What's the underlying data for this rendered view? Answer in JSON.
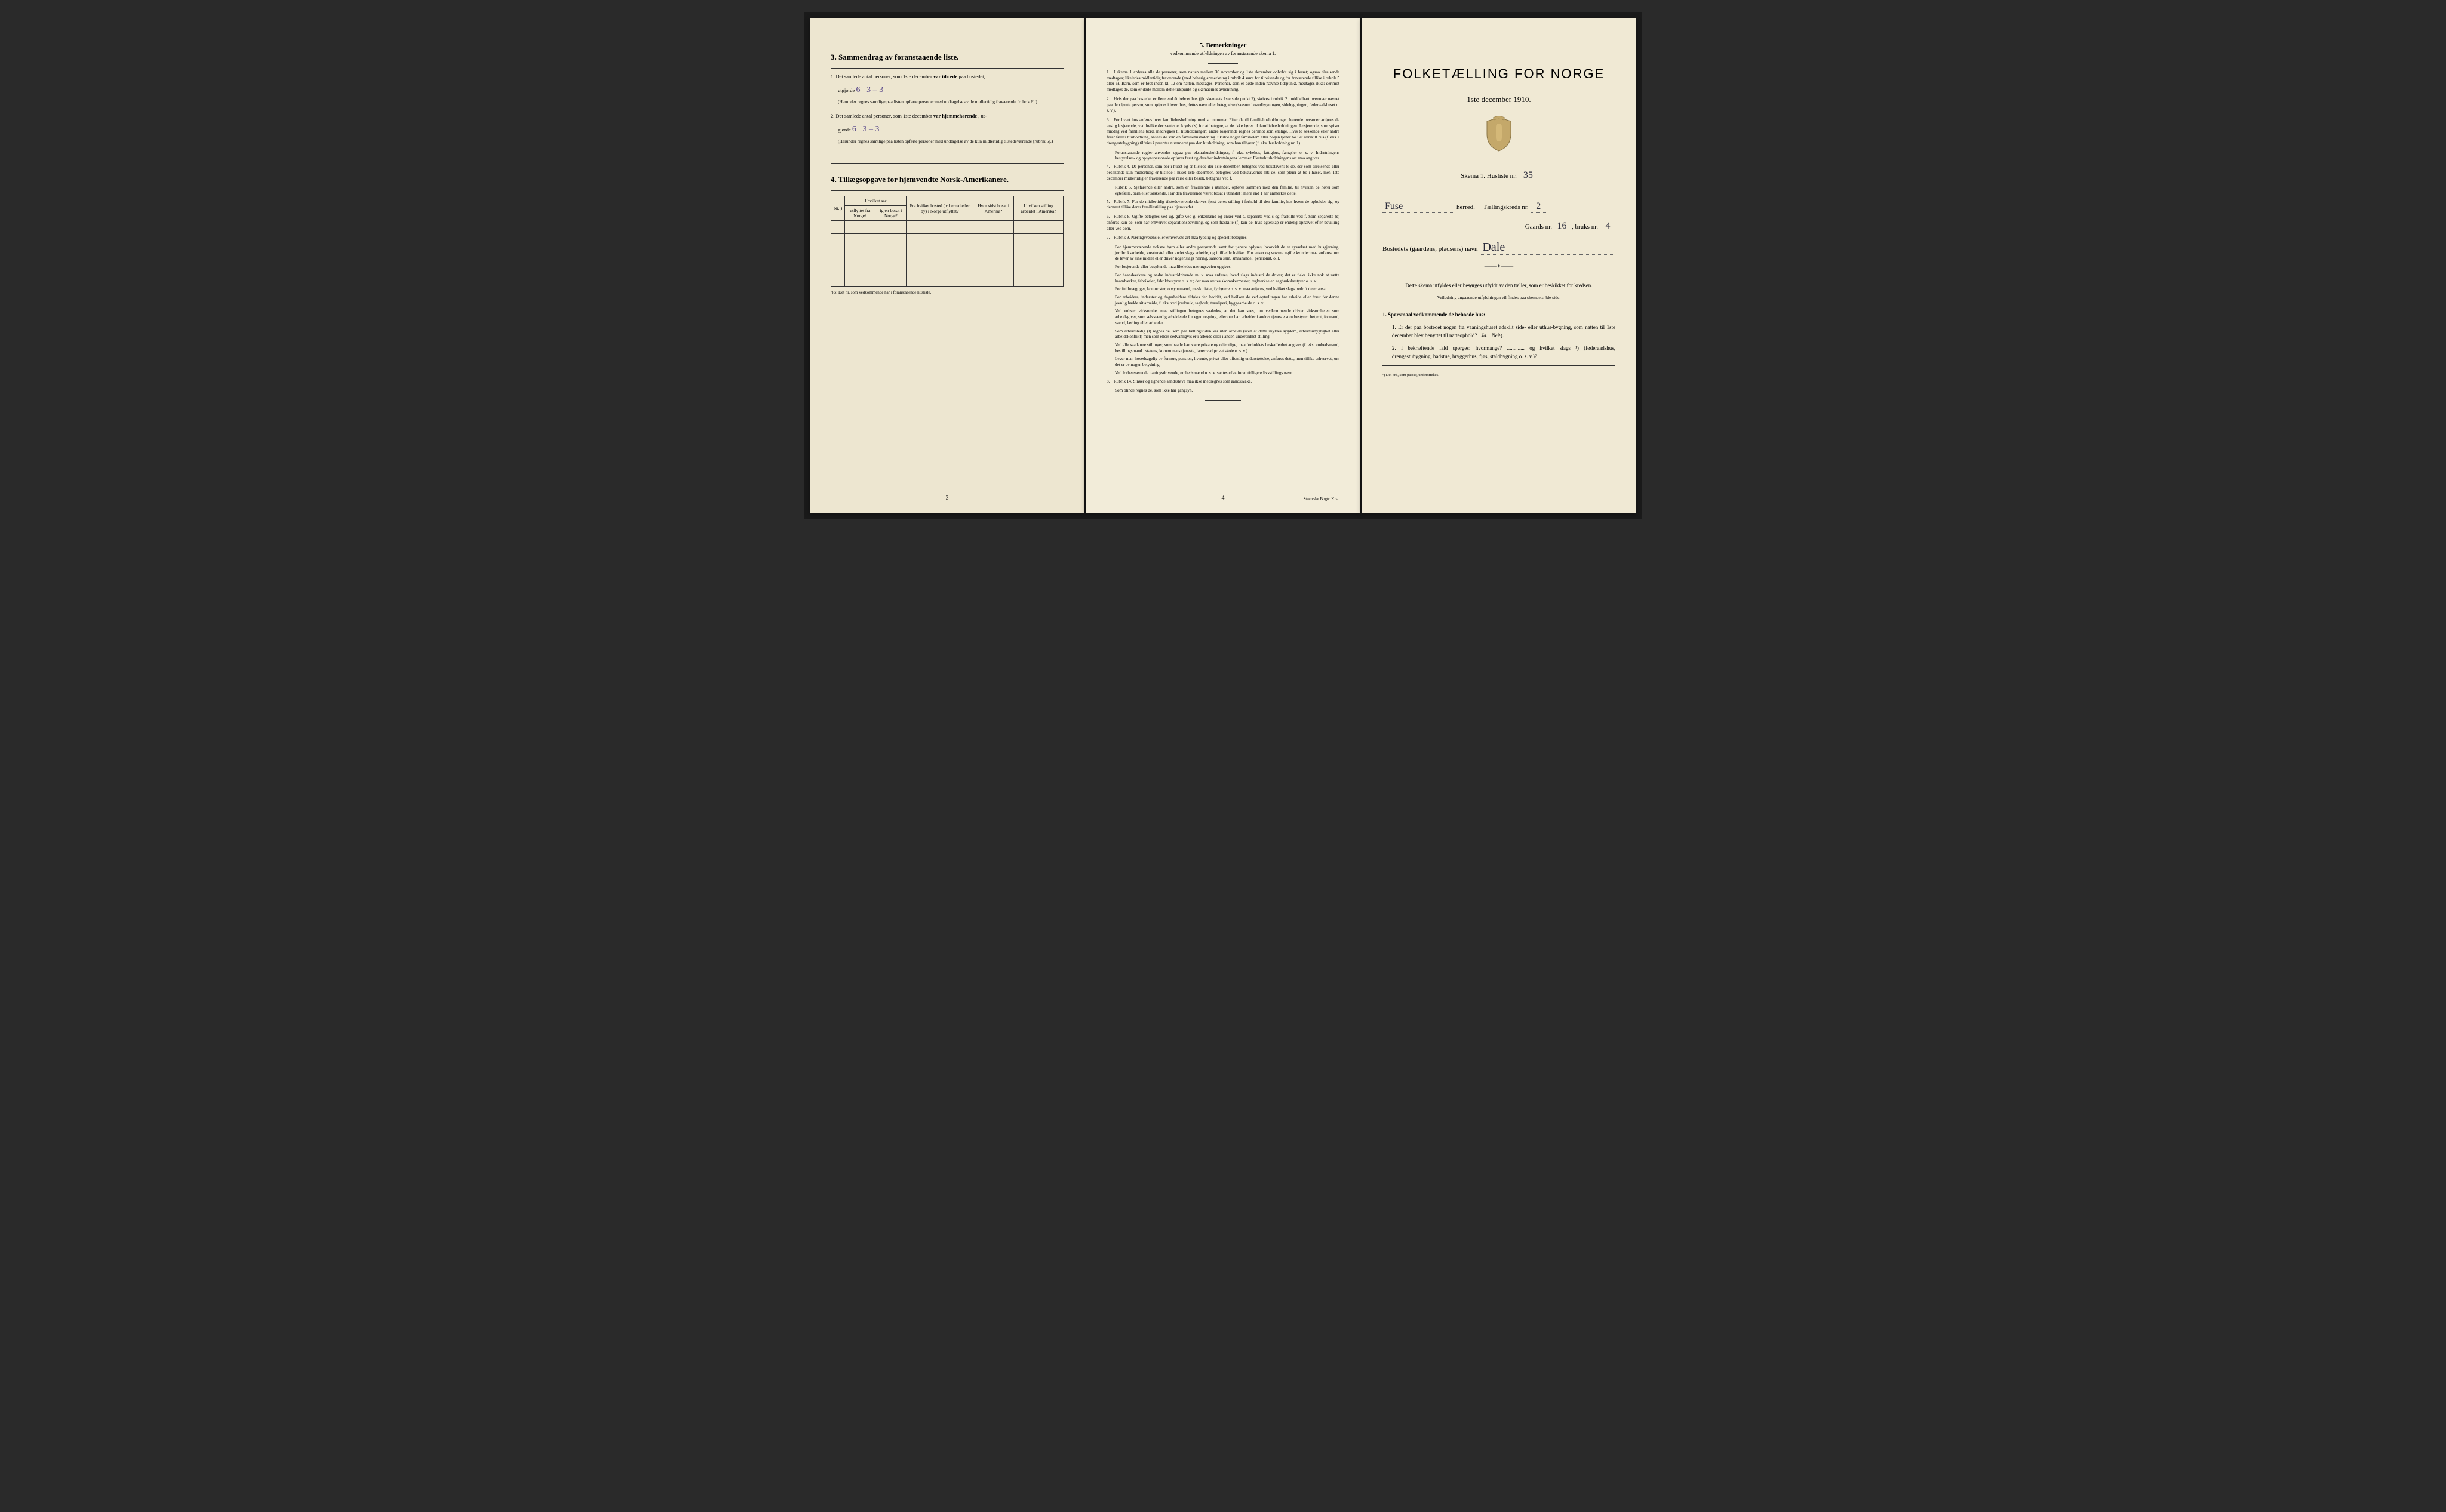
{
  "colors": {
    "paper_left": "#ede6d0",
    "paper_mid": "#f2ecd9",
    "paper_right": "#f0e9d4",
    "ink": "#1a1a1a",
    "pencil_purple": "#5a4a8a",
    "pen_dark": "#2a2a3a"
  },
  "page3": {
    "heading": "3.   Sammendrag av foranstaaende liste.",
    "item1_prefix": "1.  Det samlede antal personer, som 1ste december",
    "item1_bold": "var tilstede",
    "item1_suffix": "paa bostedet,",
    "item1_line2_prefix": "utgjorde",
    "item1_handwritten_total": "6",
    "item1_handwritten_split": "3 – 3",
    "item1_note": "(Herunder regnes samtlige paa listen opførte personer med undtagelse av de midlertidig fraværende [rubrik 6].)",
    "item2_prefix": "2.  Det samlede antal personer, som 1ste december",
    "item2_bold": "var hjemmehørende",
    "item2_suffix": ", ut-",
    "item2_line2_prefix": "gjorde",
    "item2_handwritten_total": "6",
    "item2_handwritten_split": "3 – 3",
    "item2_note": "(Herunder regnes samtlige paa listen opførte personer med undtagelse av de kun midlertidig tilstedeværende [rubrik 5].)",
    "heading4": "4.   Tillægsopgave for hjemvendte Norsk-Amerikanere.",
    "table": {
      "col_nr": "Nr.¹)",
      "col_group1": "I hvilket aar",
      "col_1a": "utflyttet fra Norge?",
      "col_1b": "igjen bosat i Norge?",
      "col_2": "Fra hvilket bosted (ɔ: herred eller by) i Norge utflyttet?",
      "col_3": "Hvor sidst bosat i Amerika?",
      "col_4": "I hvilken stilling arbeidet i Amerika?",
      "blank_rows": 5
    },
    "footnote": "¹) ɔ: Det nr. som vedkommende har i foranstaaende husliste.",
    "page_num": "3"
  },
  "page4": {
    "heading": "5.   Bemerkninger",
    "subtitle": "vedkommende utfyldningen av foranstaaende skema 1.",
    "items": [
      {
        "n": "1.",
        "t": "I skema 1 anføres alle de personer, som natten mellem 30 november og 1ste december opholdt sig i huset; ogsaa tilreisende medtages; likeledes midlertidig fraværende (med behørig anmerkning i rubrik 4 samt for tilreisende og for fraværende tillike i rubrik 5 eller 6). Barn, som er født inden kl. 12 om natten, medtages. Personer, som er døde inden nævnte tidspunkt, medtages ikke; derimot medtages de, som er døde mellem dette tidspunkt og skemaernes avhentning."
      },
      {
        "n": "2.",
        "t": "Hvis der paa bostedet er flere end ét beboet hus (jfr. skemaets 1ste side punkt 2), skrives i rubrik 2 umiddelbart ovenover navnet paa den første person, som opføres i hvert hus, dettes navn eller betegnelse (saasom hovedbygningen, sidebygningen, føderaadshuset o. s. v.)."
      },
      {
        "n": "3.",
        "t": "For hvert hus anføres hver familiehusholdning med sit nummer. Efter de til familiehusholdningen hørende personer anføres de enslig losjerende, ved hvilke der sættes et kryds (×) for at betegne, at de ikke hører til familiehusholdningen. Losjerende, som spiser middag ved familiens bord, medregnes til husholdningen; andre losjerende regnes derimot som enslige. Hvis to søskende eller andre fører fælles husholdning, ansees de som en familiehusholdning. Skulde noget familielem eller nogen tjener bo i et særskilt hus (f. eks. i drengestubygning) tilføies i parentes nummeret paa den husholdning, som han tilhører (f. eks. husholdning nr. 1).",
        "sub": "Foranstaaende regler anvendes ogsaa paa ekstrahusholdninger, f. eks. sykehus, fattighus, fængsler o. s. v. Indretningens bestyrelses- og opsynspersonale opføres først og derefter indretningens lemmer. Ekstrahusholdningens art maa angives."
      },
      {
        "n": "4.",
        "t": "Rubrik 4. De personer, som bor i huset og er tilstede der 1ste december, betegnes ved bokstaven: b; de, der som tilreisende eller besøkende kun midlertidig er tilstede i huset 1ste december, betegnes ved bokstaverne: mt; de, som pleier at bo i huset, men 1ste december midlertidig er fraværende paa reise eller besøk, betegnes ved f.",
        "sub": "Rubrik 5. Sjøfarende eller andre, som er fraværende i utlandet, opføres sammen med den familie, til hvilken de hører som egtefælle, barn eller søskende. Har den fraværende været bosat i utlandet i mere end 1 aar anmerkes dette."
      },
      {
        "n": "5.",
        "t": "Rubrik 7. For de midlertidig tilstedeværende skrives først deres stilling i forhold til den familie, hos hvem de opholder sig, og dernæst tillike deres familiestilling paa hjemstedet."
      },
      {
        "n": "6.",
        "t": "Rubrik 8. Ugifte betegnes ved ug, gifte ved g, enkemænd og enker ved e, separerte ved s og fraskilte ved f. Som separerte (s) anføres kun de, som har erhvervet separationsbevilling, og som fraskilte (f) kun de, hvis egteskap er endelig ophævet efter bevilling eller ved dom."
      },
      {
        "n": "7.",
        "t": "Rubrik 9. Næringsveiens eller erhvervets art maa tydelig og specielt betegnes.",
        "subs": [
          "For hjemmeværende voksne børn eller andre paarørende samt for tjenere oplyses, hvorvidt de er sysselsat med husgjerning, jordbruksarbeide, kreaturstel eller andet slags arbeide, og i tilfælde hvilket. For enker og voksne ugifte kvinder maa anføres, om de lever av sine midler eller driver nogenslags næring, saasom søm, smaahandel, pensionat, o. l.",
          "For losjerende eller besøkende maa likeledes næringsveien opgives.",
          "For haandverkere og andre industridrivende m. v. maa anføres, hvad slags industri de driver; det er f.eks. ikke nok at sætte haandverker, fabrikeier, fabrikbestyrer o. s. v.; der maa sættes skomakermester, teglverkseier, sagbruksbestyrer o. s. v.",
          "For fuldmægtiger, kontorister, opsynsmænd, maskinister, fyrbøtere o. s. v. maa anføres, ved hvilket slags bedrift de er ansat.",
          "For arbeidere, inderster og dagarbeidere tilføies den bedrift, ved hvilken de ved optællingen har arbeide eller forut for denne jevnlig hadde sit arbeide, f. eks. ved jordbruk, sagbruk, træsliperi, byggearbeide o. s. v.",
          "Ved enhver virksomhet maa stillingen betegnes saaledes, at det kan sees, om vedkommende driver virksomheten som arbeidsgiver, som selvstændig arbeidende for egen regning, eller om han arbeider i andres tjeneste som bestyrer, betjent, formand, svend, lærling eller arbeider.",
          "Som arbeidsledig (l) regnes de, som paa tællingstiden var uten arbeide (uten at dette skyldes sygdom, arbeidsudygtighet eller arbeidskonflikt) men som ellers sedvanligvis er i arbeide eller i anden underordnet stilling.",
          "Ved alle saadanne stillinger, som baade kan være private og offentlige, maa forholdets beskaffenhet angives (f. eks. embedsmand, bestillingsmand i statens, kommunens tjeneste, lærer ved privat skole o. s. v.).",
          "Lever man hovedsagelig av formue, pension, livrente, privat eller offentlig understøttelse, anføres dette, men tillike erhvervet, om det er av nogen betydning.",
          "Ved forhenværende næringsdrivende, embedsmænd o. s. v. sættes «fv» foran tidligere livsstillings navn."
        ]
      },
      {
        "n": "8.",
        "t": "Rubrik 14. Sinker og lignende aandssløve maa ikke medregnes som aandssvake.",
        "sub": "Som blinde regnes de, som ikke har gangsyn."
      }
    ],
    "page_num": "4",
    "printer": "Steen'ske Bogtr.  Kr.a."
  },
  "page5": {
    "title": "FOLKETÆLLING FOR NORGE",
    "date": "1ste december 1910.",
    "skema_label": "Skema 1.   Husliste nr.",
    "husliste_nr": "35",
    "herred_value": "Fuse",
    "herred_label": "herred.",
    "kreds_label": "Tællingskreds nr.",
    "kreds_nr": "2",
    "gaard_label": "Gaards nr.",
    "gaard_nr": "16",
    "bruk_label": ", bruks nr.",
    "bruk_nr": "4",
    "bosted_label": "Bostedets (gaardens, pladsens) navn",
    "bosted_value": "Dale",
    "instruct1": "Dette skema utfyldes eller besørges utfyldt av den tæller, som er beskikket for kredsen.",
    "instruct2": "Veiledning angaaende utfyldningen vil findes paa skemaets 4de side.",
    "q_head": "1. Spørsmaal vedkommende de beboede hus:",
    "q1": "1.  Er der paa bostedet nogen fra vaaningshuset adskilt side- eller uthus-bygning, som natten til 1ste december blev benyttet til natteophold?",
    "q1_ja": "Ja.",
    "q1_nei": "Nei",
    "q1_sup": "¹).",
    "q2": "2.  I bekræftende fald spørges: hvormange? ............. og hvilket slags ¹) (føderaadshus, drengestubygning, badstue, bryggerhus, fjøs, staldbygning o. s. v.)?",
    "foot": "¹) Det ord, som passer, understrekes."
  }
}
